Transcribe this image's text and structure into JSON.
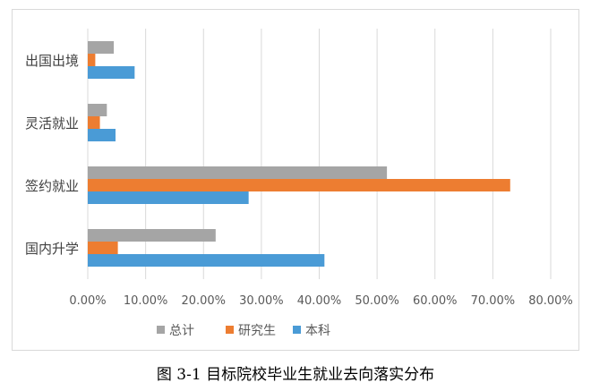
{
  "caption": "图 3-1 目标院校毕业生就业去向落实分布",
  "chart_data": {
    "type": "bar",
    "orientation": "horizontal",
    "categories": [
      "出国出境",
      "灵活就业",
      "签约就业",
      "国内升学"
    ],
    "series": [
      {
        "name": "总计",
        "color": "#a5a5a5",
        "values": [
          4.5,
          3.3,
          51.7,
          22.1
        ]
      },
      {
        "name": "研究生",
        "color": "#ed7d31",
        "values": [
          1.3,
          2.1,
          73.0,
          5.2
        ]
      },
      {
        "name": "本科",
        "color": "#4a9bd6",
        "values": [
          8.1,
          4.8,
          27.8,
          40.9
        ]
      }
    ],
    "x_ticks": [
      "0.00%",
      "10.00%",
      "20.00%",
      "30.00%",
      "40.00%",
      "50.00%",
      "60.00%",
      "70.00%",
      "80.00%"
    ],
    "xlim": [
      0,
      80
    ],
    "grid": true,
    "legend_position": "bottom"
  }
}
